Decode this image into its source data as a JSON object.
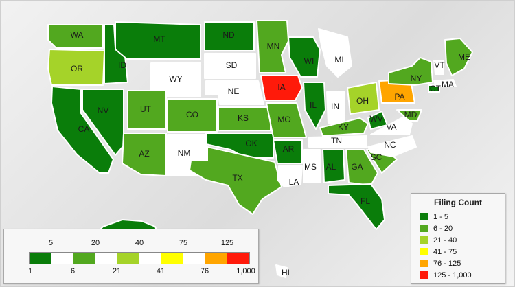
{
  "colors": {
    "dark_green": "#0a7d0a",
    "mid_green": "#52a81f",
    "light_green": "#a5d329",
    "yellow": "#ffff00",
    "orange": "#ffa500",
    "red": "#ff1a0a",
    "white": "#ffffff"
  },
  "states": [
    {
      "abbr": "WA",
      "fill": "#52a81f"
    },
    {
      "abbr": "OR",
      "fill": "#a5d329"
    },
    {
      "abbr": "CA",
      "fill": "#0a7d0a"
    },
    {
      "abbr": "ID",
      "fill": "#0a7d0a"
    },
    {
      "abbr": "NV",
      "fill": "#0a7d0a"
    },
    {
      "abbr": "MT",
      "fill": "#0a7d0a"
    },
    {
      "abbr": "WY",
      "fill": "#ffffff"
    },
    {
      "abbr": "UT",
      "fill": "#52a81f"
    },
    {
      "abbr": "AZ",
      "fill": "#52a81f"
    },
    {
      "abbr": "CO",
      "fill": "#52a81f"
    },
    {
      "abbr": "NM",
      "fill": "#ffffff"
    },
    {
      "abbr": "ND",
      "fill": "#0a7d0a"
    },
    {
      "abbr": "SD",
      "fill": "#ffffff"
    },
    {
      "abbr": "NE",
      "fill": "#ffffff"
    },
    {
      "abbr": "KS",
      "fill": "#52a81f"
    },
    {
      "abbr": "OK",
      "fill": "#0a7d0a"
    },
    {
      "abbr": "TX",
      "fill": "#52a81f"
    },
    {
      "abbr": "MN",
      "fill": "#52a81f"
    },
    {
      "abbr": "IA",
      "fill": "#ff1a0a"
    },
    {
      "abbr": "MO",
      "fill": "#52a81f"
    },
    {
      "abbr": "AR",
      "fill": "#0a7d0a"
    },
    {
      "abbr": "LA",
      "fill": "#ffffff"
    },
    {
      "abbr": "WI",
      "fill": "#0a7d0a"
    },
    {
      "abbr": "IL",
      "fill": "#0a7d0a"
    },
    {
      "abbr": "MI",
      "fill": "#ffffff"
    },
    {
      "abbr": "IN",
      "fill": "#ffffff"
    },
    {
      "abbr": "OH",
      "fill": "#a5d329"
    },
    {
      "abbr": "KY",
      "fill": "#52a81f"
    },
    {
      "abbr": "TN",
      "fill": "#ffffff"
    },
    {
      "abbr": "MS",
      "fill": "#ffffff"
    },
    {
      "abbr": "AL",
      "fill": "#0a7d0a"
    },
    {
      "abbr": "GA",
      "fill": "#52a81f"
    },
    {
      "abbr": "FL",
      "fill": "#0a7d0a"
    },
    {
      "abbr": "SC",
      "fill": "#52a81f"
    },
    {
      "abbr": "NC",
      "fill": "#ffffff"
    },
    {
      "abbr": "VA",
      "fill": "#ffffff"
    },
    {
      "abbr": "WV",
      "fill": "#0a7d0a"
    },
    {
      "abbr": "MD",
      "fill": "#52a81f"
    },
    {
      "abbr": "PA",
      "fill": "#ffa500"
    },
    {
      "abbr": "NY",
      "fill": "#52a81f"
    },
    {
      "abbr": "CT",
      "fill": "#0a7d0a"
    },
    {
      "abbr": "VT",
      "fill": "#ffffff"
    },
    {
      "abbr": "MA",
      "fill": "#ffffff"
    },
    {
      "abbr": "ME",
      "fill": "#52a81f"
    },
    {
      "abbr": "HI",
      "fill": "#ffffff"
    }
  ],
  "legend": {
    "title": "Filing Count",
    "items": [
      {
        "label": "1 - 5",
        "color": "#0a7d0a"
      },
      {
        "label": "6 - 20",
        "color": "#52a81f"
      },
      {
        "label": "21 - 40",
        "color": "#a5d329"
      },
      {
        "label": "41 - 75",
        "color": "#ffff00"
      },
      {
        "label": "76 - 125",
        "color": "#ffa500"
      },
      {
        "label": "125 - 1,000",
        "color": "#ff1a0a"
      }
    ]
  },
  "scale": {
    "segments": [
      "#0a7d0a",
      "#ffffff",
      "#52a81f",
      "#ffffff",
      "#a5d329",
      "#ffffff",
      "#ffff00",
      "#ffffff",
      "#ffa500",
      "#ff1a0a"
    ],
    "top_ticks": [
      "5",
      "20",
      "40",
      "75",
      "125"
    ],
    "bottom_ticks": [
      "1",
      "6",
      "21",
      "41",
      "76",
      "1,000"
    ]
  }
}
